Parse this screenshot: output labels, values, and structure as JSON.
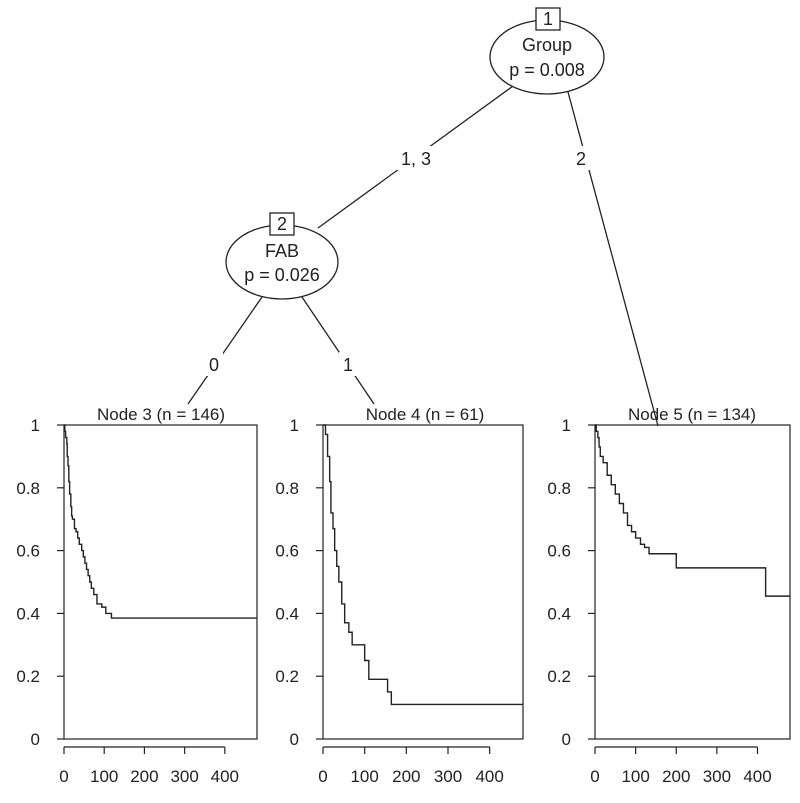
{
  "tree": {
    "inner_nodes": [
      {
        "id": "1",
        "variable": "Group",
        "pvalue": "p = 0.008"
      },
      {
        "id": "2",
        "variable": "FAB",
        "pvalue": "p = 0.026"
      }
    ],
    "edges": [
      {
        "from": "1",
        "to": "2",
        "label": "1, 3"
      },
      {
        "from": "1",
        "to": "5",
        "label": "2"
      },
      {
        "from": "2",
        "to": "3",
        "label": "0"
      },
      {
        "from": "2",
        "to": "4",
        "label": "1"
      }
    ],
    "terminal_nodes": [
      {
        "id": "3",
        "title": "Node 3 (n = 146)"
      },
      {
        "id": "4",
        "title": "Node 4 (n = 61)"
      },
      {
        "id": "5",
        "title": "Node 5 (n = 134)"
      }
    ]
  },
  "chart_data": [
    {
      "type": "line",
      "title": "Node 3 (n = 146)",
      "xlim": [
        0,
        480
      ],
      "ylim": [
        0,
        1
      ],
      "xticks": [
        "0",
        "100",
        "200",
        "300",
        "400"
      ],
      "yticks": [
        "0",
        "0.2",
        "0.4",
        "0.6",
        "0.8",
        "1"
      ],
      "step": [
        [
          0,
          1
        ],
        [
          2,
          0.98
        ],
        [
          4,
          0.96
        ],
        [
          7,
          0.94
        ],
        [
          8,
          0.9
        ],
        [
          10,
          0.87
        ],
        [
          12,
          0.82
        ],
        [
          14,
          0.78
        ],
        [
          17,
          0.74
        ],
        [
          19,
          0.71
        ],
        [
          21,
          0.7
        ],
        [
          26,
          0.67
        ],
        [
          30,
          0.66
        ],
        [
          34,
          0.64
        ],
        [
          38,
          0.62
        ],
        [
          44,
          0.6
        ],
        [
          48,
          0.58
        ],
        [
          52,
          0.56
        ],
        [
          56,
          0.54
        ],
        [
          60,
          0.52
        ],
        [
          64,
          0.5
        ],
        [
          68,
          0.48
        ],
        [
          74,
          0.46
        ],
        [
          82,
          0.43
        ],
        [
          94,
          0.42
        ],
        [
          104,
          0.4
        ],
        [
          118,
          0.385
        ],
        [
          480,
          0.385
        ]
      ]
    },
    {
      "type": "line",
      "title": "Node 4 (n = 61)",
      "xlim": [
        0,
        480
      ],
      "ylim": [
        0,
        1
      ],
      "xticks": [
        "0",
        "100",
        "200",
        "300",
        "400"
      ],
      "yticks": [
        "0",
        "0.2",
        "0.4",
        "0.6",
        "0.8",
        "1"
      ],
      "step": [
        [
          0,
          1
        ],
        [
          6,
          0.97
        ],
        [
          11,
          0.9
        ],
        [
          16,
          0.82
        ],
        [
          19,
          0.72
        ],
        [
          24,
          0.67
        ],
        [
          28,
          0.6
        ],
        [
          33,
          0.55
        ],
        [
          38,
          0.5
        ],
        [
          45,
          0.43
        ],
        [
          52,
          0.37
        ],
        [
          62,
          0.34
        ],
        [
          70,
          0.3
        ],
        [
          100,
          0.25
        ],
        [
          110,
          0.19
        ],
        [
          155,
          0.15
        ],
        [
          164,
          0.11
        ],
        [
          480,
          0.11
        ]
      ]
    },
    {
      "type": "line",
      "title": "Node 5 (n = 134)",
      "xlim": [
        0,
        480
      ],
      "ylim": [
        0,
        1
      ],
      "xticks": [
        "0",
        "100",
        "200",
        "300",
        "400"
      ],
      "yticks": [
        "0",
        "0.2",
        "0.4",
        "0.6",
        "0.8",
        "1"
      ],
      "step": [
        [
          0,
          1
        ],
        [
          3,
          0.98
        ],
        [
          7,
          0.96
        ],
        [
          10,
          0.93
        ],
        [
          13,
          0.9
        ],
        [
          20,
          0.88
        ],
        [
          30,
          0.84
        ],
        [
          40,
          0.81
        ],
        [
          50,
          0.78
        ],
        [
          60,
          0.75
        ],
        [
          70,
          0.72
        ],
        [
          80,
          0.68
        ],
        [
          90,
          0.66
        ],
        [
          100,
          0.64
        ],
        [
          112,
          0.62
        ],
        [
          122,
          0.61
        ],
        [
          133,
          0.59
        ],
        [
          150,
          0.59
        ],
        [
          200,
          0.545
        ],
        [
          420,
          0.545
        ],
        [
          420,
          0.455
        ],
        [
          480,
          0.455
        ]
      ]
    }
  ]
}
